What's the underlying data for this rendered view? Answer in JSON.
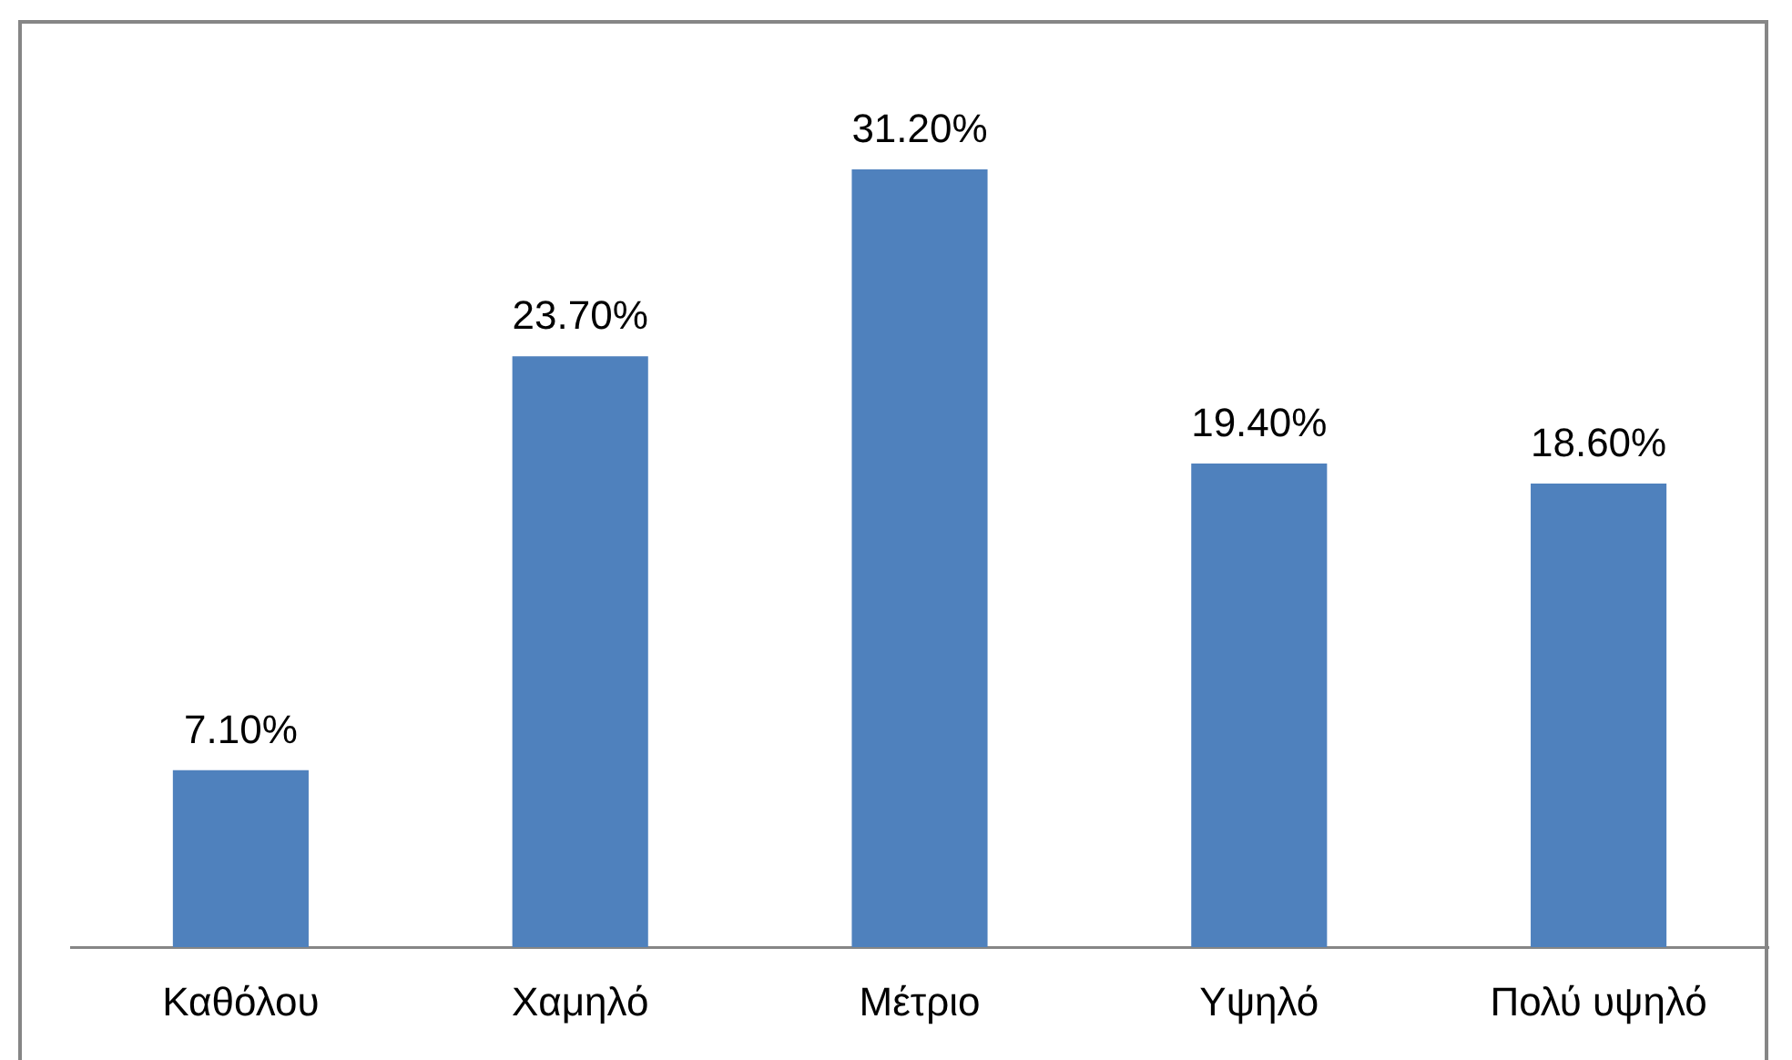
{
  "chart_data": {
    "type": "bar",
    "categories": [
      "Καθόλου",
      "Χαμηλό",
      "Μέτριο",
      "Υψηλό",
      "Πολύ υψηλό"
    ],
    "values": [
      7.1,
      23.7,
      31.2,
      19.4,
      18.6
    ],
    "value_labels": [
      "7.10%",
      "23.70%",
      "31.20%",
      "19.40%",
      "18.60%"
    ],
    "color": "#4f81bd"
  }
}
